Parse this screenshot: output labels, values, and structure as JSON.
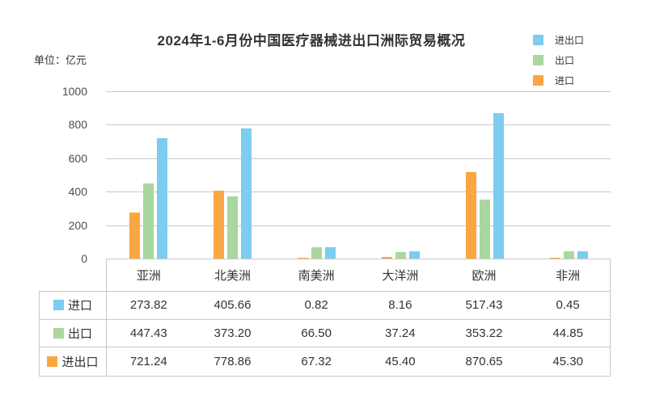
{
  "title": "2024年1-6月份中国医疗器械进出口洲际贸易概况",
  "unit_label": "单位：亿元",
  "colors": {
    "import_export_blue": "#7CCDF0",
    "export_green": "#A9D79E",
    "import_orange": "#FBA640",
    "gridline": "#C8C8C8",
    "table_border": "#C8C8C8",
    "text": "#333333",
    "axis_text": "#4D4D4D"
  },
  "legend": {
    "items": [
      {
        "label": "进出口",
        "color": "#7CCDF0"
      },
      {
        "label": "出口",
        "color": "#A9D79E"
      },
      {
        "label": "进口",
        "color": "#FBA640"
      }
    ]
  },
  "chart_data": {
    "type": "bar",
    "title": "2024年1-6月份中国医疗器械进出口洲际贸易概况",
    "ylabel": "亿元",
    "xlabel": "",
    "ylim": [
      0,
      1000
    ],
    "yticks": [
      0,
      200,
      400,
      600,
      800,
      1000
    ],
    "grid": true,
    "legend_position": "top-right",
    "categories": [
      "亚洲",
      "北美洲",
      "南美洲",
      "大洋洲",
      "欧洲",
      "非洲"
    ],
    "series": [
      {
        "name": "进口",
        "color": "#FBA640",
        "values": [
          273.82,
          405.66,
          0.82,
          8.16,
          517.43,
          0.45
        ]
      },
      {
        "name": "出口",
        "color": "#A9D79E",
        "values": [
          447.43,
          373.2,
          66.5,
          37.24,
          353.22,
          44.85
        ]
      },
      {
        "name": "进出口",
        "color": "#7CCDF0",
        "values": [
          721.24,
          778.86,
          67.32,
          45.4,
          870.65,
          45.3
        ]
      }
    ]
  },
  "table": {
    "headers": [
      "亚洲",
      "北美洲",
      "南美洲",
      "大洋洲",
      "欧洲",
      "非洲"
    ],
    "rows": [
      {
        "icon_color": "#7CCDF0",
        "label": "进口",
        "values": [
          "273.82",
          "405.66",
          "0.82",
          "8.16",
          "517.43",
          "0.45"
        ]
      },
      {
        "icon_color": "#A9D79E",
        "label": "出口",
        "values": [
          "447.43",
          "373.20",
          "66.50",
          "37.24",
          "353.22",
          "44.85"
        ]
      },
      {
        "icon_color": "#FBA640",
        "label": "进出口",
        "values": [
          "721.24",
          "778.86",
          "67.32",
          "45.40",
          "870.65",
          "45.30"
        ]
      }
    ]
  }
}
